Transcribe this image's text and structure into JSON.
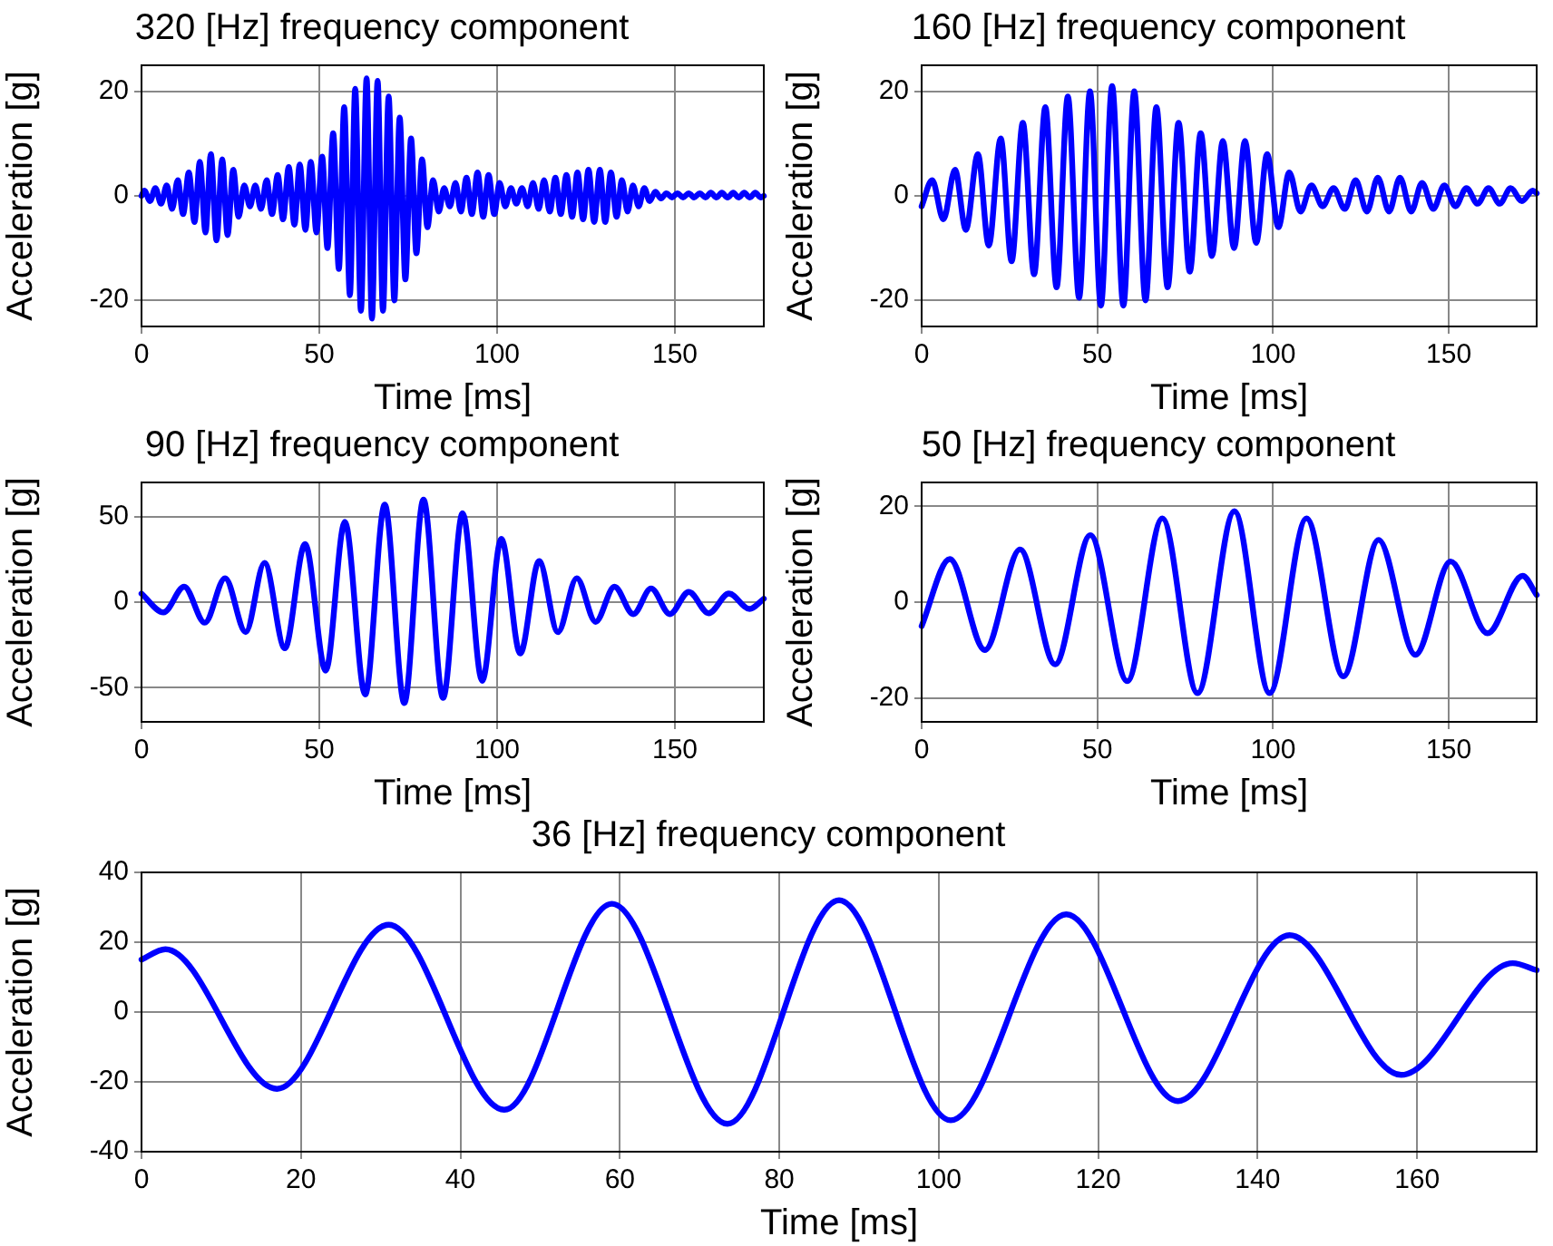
{
  "chart_data": [
    {
      "type": "line",
      "title": "320 [Hz] frequency component",
      "xlabel": "Time [ms]",
      "ylabel": "Acceleration [g]",
      "color": "#0000ff",
      "grid": true,
      "xlim": [
        0,
        175
      ],
      "xticks": [
        0,
        50,
        100,
        150
      ],
      "ylim": [
        -25,
        25
      ],
      "yticks": [
        -20,
        0,
        20
      ],
      "x": [
        0,
        0.8,
        2.4,
        3.9,
        5.5,
        7.1,
        8.6,
        10.2,
        11.7,
        13.3,
        14.9,
        16.4,
        18.0,
        19.5,
        21.1,
        22.7,
        24.2,
        25.8,
        27.3,
        28.9,
        30.5,
        32.0,
        33.6,
        35.2,
        36.7,
        38.3,
        39.8,
        41.4,
        43.0,
        44.5,
        46.1,
        47.6,
        49.2,
        50.8,
        52.3,
        53.9,
        55.5,
        57.0,
        58.6,
        60.1,
        61.7,
        63.3,
        64.8,
        66.4,
        67.9,
        69.5,
        71.1,
        72.6,
        74.2,
        75.8,
        77.3,
        78.9,
        80.4,
        82.0,
        83.6,
        85.1,
        86.7,
        88.3,
        89.8,
        91.4,
        92.9,
        94.5,
        96.1,
        97.6,
        99.2,
        100.7,
        102.3,
        103.9,
        105.4,
        107.0,
        108.6,
        110.1,
        111.7,
        113.2,
        114.8,
        116.4,
        117.9,
        119.5,
        121.1,
        122.6,
        124.2,
        125.7,
        127.3,
        128.9,
        130.4,
        132.0,
        133.6,
        135.1,
        136.7,
        138.2,
        139.8,
        141.4,
        142.9,
        144.5,
        146.1,
        147.6,
        149.2,
        150.7,
        152.3,
        153.9,
        155.4,
        157.0,
        158.6,
        160.1,
        161.7,
        163.2,
        164.8,
        166.4,
        167.9,
        169.5,
        171.1,
        172.6,
        174.2,
        175
      ],
      "values": [
        0,
        1,
        -1,
        1.5,
        -1.5,
        2,
        -2.5,
        3,
        -3.5,
        4.5,
        -5,
        6.5,
        -7,
        8,
        -8.5,
        7,
        -7.5,
        5,
        -4,
        2,
        -2,
        2,
        -2.5,
        3,
        -3.5,
        4,
        -4.5,
        5.5,
        -5.5,
        6,
        -6.5,
        6.5,
        -7,
        7.5,
        -10,
        12,
        -14,
        17,
        -19,
        20.5,
        -22,
        22.5,
        -23.5,
        22,
        -22,
        19,
        -20,
        15,
        -16,
        11,
        -11,
        7,
        -6,
        3,
        -3,
        1.5,
        -2,
        2.5,
        -3,
        3.5,
        -3.5,
        4.5,
        -4,
        4,
        -3.5,
        2.5,
        -2,
        1.5,
        -1.5,
        1.5,
        -2,
        2.5,
        -2.5,
        3,
        -3,
        3.5,
        -3.5,
        4,
        -4,
        4.5,
        -4.5,
        5,
        -5,
        5,
        -5,
        4.5,
        -4,
        3,
        -3,
        2,
        -2,
        1.5,
        -1,
        0.8,
        -0.5,
        0.5,
        -0.3,
        0.5,
        -0.3,
        0.5,
        -0.3,
        0.5,
        -0.3,
        0.6,
        -0.3,
        0.6,
        -0.3,
        0.6,
        -0.3,
        0.6,
        -0.3,
        0.6,
        -0.3,
        0
      ]
    },
    {
      "type": "line",
      "title": "160 [Hz] frequency component",
      "xlabel": "Time [ms]",
      "ylabel": "Acceleration [g]",
      "color": "#0000ff",
      "grid": true,
      "xlim": [
        0,
        175
      ],
      "xticks": [
        0,
        50,
        100,
        150
      ],
      "ylim": [
        -25,
        25
      ],
      "yticks": [
        -20,
        0,
        20
      ],
      "x": [
        0,
        3.0,
        6.2,
        9.5,
        12.6,
        16.0,
        19.1,
        22.5,
        25.6,
        28.8,
        32.0,
        35.2,
        38.4,
        41.6,
        44.8,
        47.9,
        51.0,
        54.2,
        57.4,
        60.5,
        63.7,
        66.8,
        70.0,
        73.1,
        76.3,
        79.4,
        82.6,
        85.7,
        88.9,
        92.0,
        95.2,
        98.3,
        101.5,
        104.6,
        107.8,
        110.9,
        114.1,
        117.2,
        120.4,
        123.5,
        126.7,
        129.8,
        133.0,
        136.1,
        139.3,
        142.4,
        145.6,
        148.7,
        151.9,
        155.0,
        158.2,
        161.3,
        164.5,
        167.6,
        170.8,
        173.9,
        175
      ],
      "values": [
        -2,
        3,
        -4.5,
        5,
        -6.5,
        8,
        -9.5,
        11,
        -12.5,
        14,
        -15,
        17,
        -17.5,
        19,
        -19.5,
        20,
        -21,
        21,
        -21,
        20,
        -20,
        17,
        -17.5,
        14,
        -14.5,
        12,
        -11.5,
        10.5,
        -10,
        10.5,
        -9,
        8,
        -6,
        4.5,
        -3,
        2,
        -2,
        1.5,
        -2.5,
        3,
        -3,
        3.5,
        -3,
        3.5,
        -3,
        2.5,
        -2.5,
        2,
        -2,
        1.5,
        -1.5,
        1.5,
        -1.5,
        1.5,
        -1,
        1,
        0.5
      ]
    },
    {
      "type": "line",
      "title": "90 [Hz] frequency component",
      "xlabel": "Time [ms]",
      "ylabel": "Acceleration [g]",
      "color": "#0000ff",
      "grid": true,
      "xlim": [
        0,
        175
      ],
      "xticks": [
        0,
        50,
        100,
        150
      ],
      "ylim": [
        -70,
        70
      ],
      "yticks": [
        -50,
        0,
        50
      ],
      "x": [
        0,
        6.2,
        12,
        17.8,
        23.5,
        29.3,
        34.6,
        40.3,
        46,
        51.8,
        57.2,
        62.9,
        68.4,
        73.9,
        79.3,
        84.8,
        90.3,
        95.8,
        101.2,
        106.5,
        111.8,
        117.1,
        122.4,
        127.7,
        133,
        138.3,
        143.3,
        148.6,
        153.9,
        159.5,
        165.2,
        171,
        175
      ],
      "values": [
        5,
        -6,
        9,
        -12,
        14,
        -17.5,
        23,
        -27,
        34,
        -40,
        47,
        -54,
        57,
        -59,
        60,
        -56,
        52,
        -46,
        37,
        -30,
        24,
        -17.5,
        14,
        -11.5,
        9,
        -7,
        8,
        -7,
        6,
        -6.5,
        5,
        -4,
        2
      ]
    },
    {
      "type": "line",
      "title": "50 [Hz] frequency component",
      "xlabel": "Time [ms]",
      "ylabel": "Acceleration [g]",
      "color": "#0000ff",
      "grid": true,
      "xlim": [
        0,
        175
      ],
      "xticks": [
        0,
        50,
        100,
        150
      ],
      "ylim": [
        -25,
        25
      ],
      "yticks": [
        -20,
        0,
        20
      ],
      "x": [
        0,
        8,
        18,
        28,
        38,
        48,
        58.5,
        68.5,
        78.5,
        89,
        99,
        109.5,
        120,
        130,
        140.5,
        150.5,
        161,
        171,
        175
      ],
      "values": [
        -5,
        9,
        -10,
        11,
        -13,
        14,
        -16.5,
        17.5,
        -19,
        19,
        -19,
        17.5,
        -15.5,
        13,
        -11,
        8.5,
        -6.5,
        5.5,
        1.5
      ]
    },
    {
      "type": "line",
      "title": "36 [Hz] frequency component",
      "xlabel": "Time [ms]",
      "ylabel": "Acceleration [g]",
      "color": "#0000ff",
      "grid": true,
      "xlim": [
        0,
        175
      ],
      "xticks": [
        0,
        20,
        40,
        60,
        80,
        100,
        120,
        140,
        160
      ],
      "ylim": [
        -40,
        40
      ],
      "yticks": [
        -40,
        -20,
        0,
        20,
        40
      ],
      "x": [
        0,
        3,
        17,
        31,
        45.5,
        59,
        73.5,
        87.5,
        101.5,
        116,
        130,
        144,
        158,
        172,
        175
      ],
      "values": [
        15,
        18,
        -22,
        25,
        -28,
        31,
        -32,
        32,
        -31,
        28,
        -25.5,
        22,
        -18,
        14,
        12
      ]
    }
  ]
}
